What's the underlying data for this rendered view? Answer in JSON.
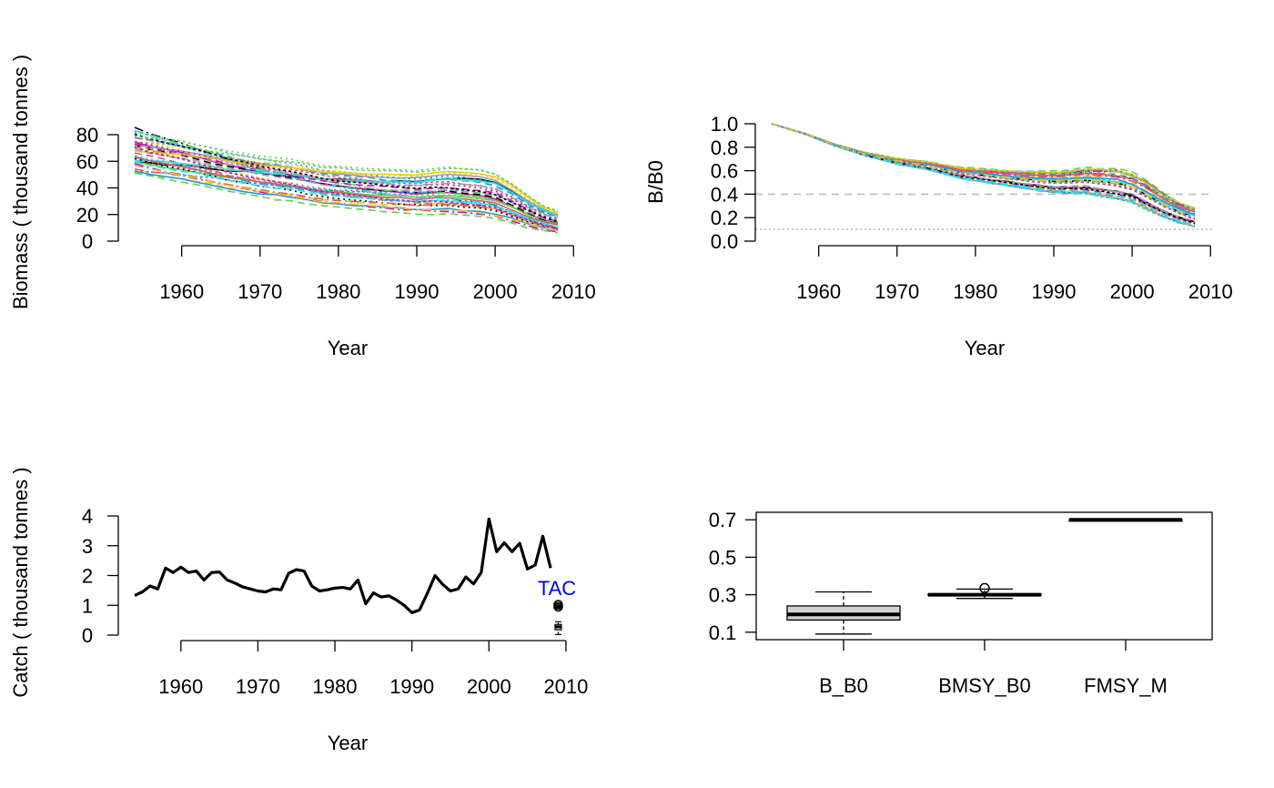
{
  "colors": {
    "axis": "#000000",
    "refline": "#bebebe",
    "tac": "#0000ee",
    "box_fill": "#d3d3d3",
    "palette": [
      "#000000",
      "#df536b",
      "#61d04f",
      "#2297e6",
      "#28e2e5",
      "#cd0bbc",
      "#f5c710",
      "#9e9e9e"
    ]
  },
  "chart_data": [
    {
      "id": "biomass",
      "type": "line",
      "title": "",
      "xlabel": "Year",
      "ylabel": "Biomass ( thousand tonnes )",
      "xlim": [
        1954,
        2008
      ],
      "ylim": [
        0,
        80
      ],
      "xticks": [
        1960,
        1970,
        1980,
        1990,
        2000,
        2010
      ],
      "yticks": [
        0,
        20,
        40,
        60,
        80
      ],
      "years": [
        1954,
        1958,
        1962,
        1966,
        1970,
        1974,
        1978,
        1982,
        1986,
        1990,
        1994,
        1998,
        2000,
        2002,
        2004,
        2006,
        2008
      ],
      "base_curve": [
        65,
        61,
        57,
        52,
        48,
        45,
        41,
        39,
        37,
        36,
        37,
        35,
        33,
        28,
        22,
        17,
        14
      ],
      "spread": [
        0.78,
        1.32
      ],
      "n_lines": 40,
      "series_note": "40 simulated stochastic trajectories (dashed/dotted/solid, multicolor); upper envelope 87 in 1954, lower envelope 7 in 2008"
    },
    {
      "id": "depletion",
      "type": "line",
      "title": "",
      "xlabel": "Year",
      "ylabel": "B/B0",
      "xlim": [
        1954,
        2008
      ],
      "ylim": [
        0,
        1
      ],
      "xticks": [
        1960,
        1970,
        1980,
        1990,
        2000,
        2010
      ],
      "yticks": [
        0.0,
        0.2,
        0.4,
        0.6,
        0.8,
        1.0
      ],
      "ytick_labels": [
        "0.0",
        "0.2",
        "0.4",
        "0.6",
        "0.8",
        "1.0"
      ],
      "reference_lines": [
        {
          "y": 0.4,
          "style": "dashed"
        },
        {
          "y": 0.1,
          "style": "dotted"
        }
      ],
      "years": [
        1954,
        1958,
        1962,
        1966,
        1970,
        1974,
        1978,
        1982,
        1986,
        1990,
        1994,
        1998,
        2000,
        2002,
        2004,
        2006,
        2008
      ],
      "base_curve": [
        1.0,
        0.92,
        0.82,
        0.74,
        0.68,
        0.64,
        0.58,
        0.55,
        0.52,
        0.5,
        0.51,
        0.48,
        0.45,
        0.38,
        0.3,
        0.24,
        0.2
      ],
      "n_lines": 40
    },
    {
      "id": "catch",
      "type": "line",
      "title": "",
      "xlabel": "Year",
      "ylabel": "Catch ( thousand tonnes )",
      "xlim": [
        1954,
        2009
      ],
      "ylim": [
        0,
        4
      ],
      "xticks": [
        1960,
        1970,
        1980,
        1990,
        2000,
        2010
      ],
      "yticks": [
        0,
        1,
        2,
        3,
        4
      ],
      "x": [
        1954,
        1955,
        1956,
        1957,
        1958,
        1959,
        1960,
        1961,
        1962,
        1963,
        1964,
        1965,
        1966,
        1967,
        1968,
        1969,
        1970,
        1971,
        1972,
        1973,
        1974,
        1975,
        1976,
        1977,
        1978,
        1979,
        1980,
        1981,
        1982,
        1983,
        1984,
        1985,
        1986,
        1987,
        1988,
        1989,
        1990,
        1991,
        1992,
        1993,
        1994,
        1995,
        1996,
        1997,
        1998,
        1999,
        2000,
        2001,
        2002,
        2003,
        2004,
        2005,
        2006,
        2007,
        2008
      ],
      "y": [
        1.33,
        1.45,
        1.65,
        1.55,
        2.25,
        2.1,
        2.28,
        2.1,
        2.15,
        1.85,
        2.1,
        2.12,
        1.85,
        1.75,
        1.62,
        1.55,
        1.48,
        1.45,
        1.55,
        1.52,
        2.08,
        2.2,
        2.15,
        1.65,
        1.48,
        1.52,
        1.58,
        1.6,
        1.55,
        1.85,
        1.05,
        1.42,
        1.28,
        1.32,
        1.18,
        1.0,
        0.75,
        0.85,
        1.4,
        2.0,
        1.7,
        1.48,
        1.55,
        1.95,
        1.72,
        2.1,
        3.9,
        2.8,
        3.1,
        2.8,
        3.08,
        2.22,
        2.35,
        3.32,
        2.25
      ],
      "tac_label": "TAC",
      "tac_boxes": [
        {
          "x": 2009,
          "min": 0.88,
          "q1": 0.93,
          "median": 0.97,
          "q3": 1.01,
          "max": 1.05,
          "outliers": [
            0.95,
            1.02
          ]
        },
        {
          "x": 2009,
          "min": 0.02,
          "q1": 0.18,
          "median": 0.28,
          "q3": 0.36,
          "max": 0.45,
          "outliers": []
        }
      ]
    },
    {
      "id": "params",
      "type": "boxplot",
      "title": "",
      "xlabel": "",
      "ylabel": "",
      "ylim": [
        0.06,
        0.74
      ],
      "yticks": [
        0.1,
        0.3,
        0.5,
        0.7
      ],
      "categories": [
        "B_B0",
        "BMSY_B0",
        "FMSY_M"
      ],
      "boxes": [
        {
          "name": "B_B0",
          "min": 0.09,
          "q1": 0.165,
          "median": 0.195,
          "q3": 0.24,
          "max": 0.315,
          "outliers": []
        },
        {
          "name": "BMSY_B0",
          "min": 0.28,
          "q1": 0.296,
          "median": 0.3,
          "q3": 0.304,
          "max": 0.33,
          "outliers": [
            0.335
          ]
        },
        {
          "name": "FMSY_M",
          "min": 0.7,
          "q1": 0.7,
          "median": 0.7,
          "q3": 0.7,
          "max": 0.7,
          "outliers": []
        }
      ]
    }
  ]
}
